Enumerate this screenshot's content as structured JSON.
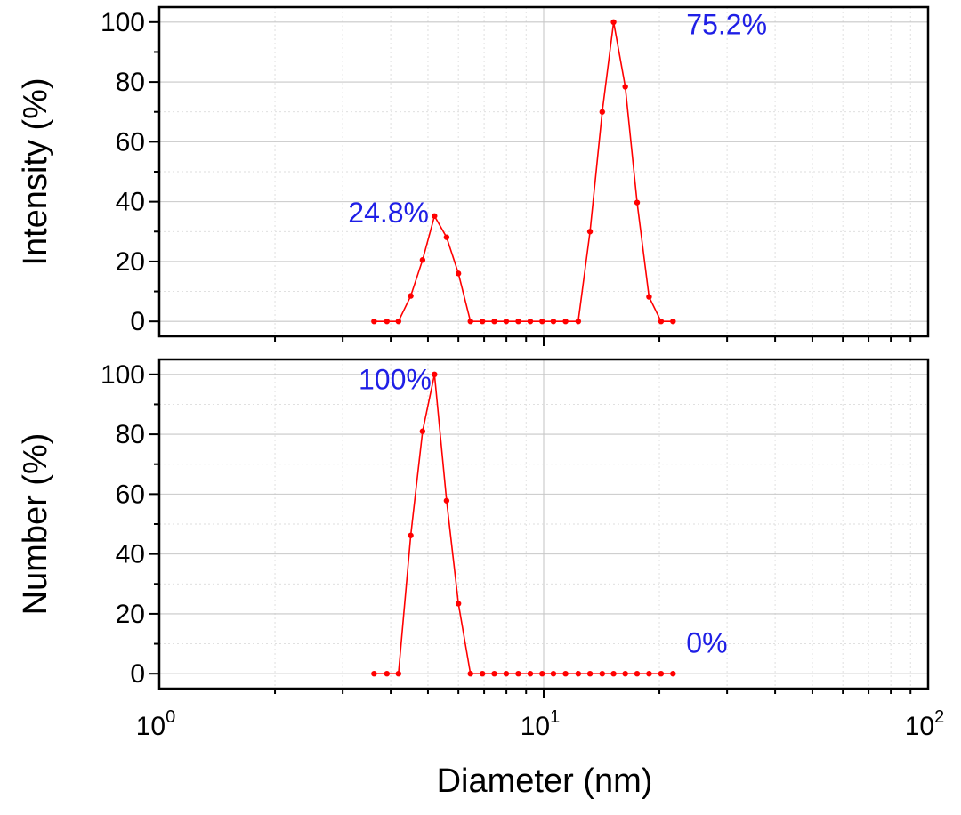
{
  "chart_data": [
    {
      "type": "line",
      "xlabel": "Diameter (nm)",
      "ylabel": "Intensity (%)",
      "xscale": "log",
      "xlim": [
        1,
        100
      ],
      "ylim": [
        -5,
        105
      ],
      "yticks": [
        0,
        20,
        40,
        60,
        80,
        100
      ],
      "grid": true,
      "color": "#ff0000",
      "x": [
        3.62,
        3.91,
        4.19,
        4.51,
        4.84,
        5.2,
        5.59,
        6.0,
        6.45,
        6.93,
        7.44,
        7.99,
        8.59,
        9.23,
        9.91,
        10.6,
        11.4,
        12.3,
        13.2,
        14.2,
        15.2,
        16.3,
        17.5,
        18.8,
        20.2,
        21.7
      ],
      "series": [
        {
          "values": [
            0,
            0,
            0,
            8.5,
            20.5,
            35.2,
            28.1,
            16.0,
            0,
            0,
            0,
            0,
            0,
            0,
            0,
            0,
            0,
            0,
            30.0,
            70.0,
            100,
            78.4,
            39.7,
            8.2,
            0,
            0
          ]
        }
      ],
      "annotations": [
        {
          "text": "24.8%",
          "x": 3.1,
          "y": 33,
          "color": "#1f1fe6"
        },
        {
          "text": "75.2%",
          "x": 23.5,
          "y": 96,
          "color": "#1f1fe6"
        }
      ]
    },
    {
      "type": "line",
      "xlabel": "Diameter (nm)",
      "ylabel": "Number (%)",
      "xscale": "log",
      "xlim": [
        1,
        100
      ],
      "ylim": [
        -5,
        105
      ],
      "yticks": [
        0,
        20,
        40,
        60,
        80,
        100
      ],
      "xticks": [
        1,
        10,
        100
      ],
      "xtick_labels": [
        {
          "base": "10",
          "exp": "0"
        },
        {
          "base": "10",
          "exp": "1"
        },
        {
          "base": "10",
          "exp": "2"
        }
      ],
      "grid": true,
      "color": "#ff0000",
      "x": [
        3.62,
        3.91,
        4.19,
        4.51,
        4.84,
        5.2,
        5.59,
        6.0,
        6.45,
        6.93,
        7.44,
        7.99,
        8.59,
        9.23,
        9.91,
        10.6,
        11.4,
        12.3,
        13.2,
        14.2,
        15.2,
        16.3,
        17.5,
        18.8,
        20.2,
        21.7
      ],
      "series": [
        {
          "values": [
            0,
            0,
            0,
            46.2,
            81.0,
            100,
            57.8,
            23.4,
            0,
            0,
            0,
            0,
            0,
            0,
            0,
            0,
            0,
            0,
            0,
            0,
            0,
            0,
            0,
            0,
            0,
            0
          ]
        }
      ],
      "annotations": [
        {
          "text": "100%",
          "x": 3.3,
          "y": 95,
          "color": "#1f1fe6"
        },
        {
          "text": "0%",
          "x": 23.5,
          "y": 7,
          "color": "#1f1fe6"
        }
      ]
    }
  ]
}
